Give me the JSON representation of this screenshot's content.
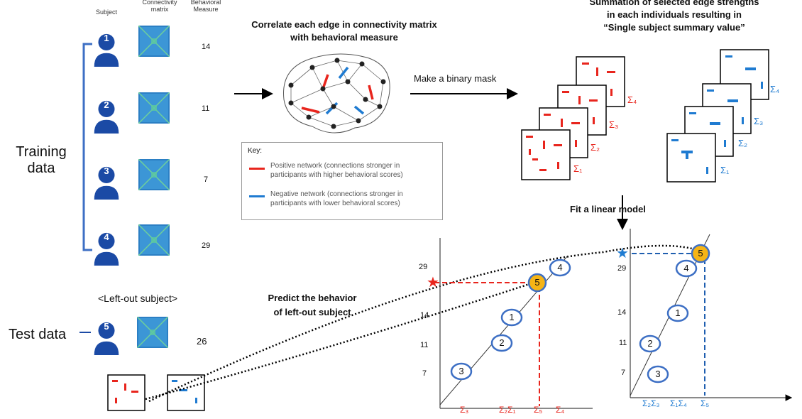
{
  "headers": {
    "subject": "Subject",
    "connectivity": "Connectivity matrix",
    "behavioral": "Behavioral Measure"
  },
  "training_label": "Training data",
  "test_label": "Test data",
  "left_out_label": "<Left-out subject>",
  "subjects": [
    {
      "id": "1",
      "measure": "14"
    },
    {
      "id": "2",
      "measure": "11"
    },
    {
      "id": "3",
      "measure": "7"
    },
    {
      "id": "4",
      "measure": "29"
    }
  ],
  "test_subject": {
    "id": "5",
    "measure": "26"
  },
  "correlate_title": "Correlate each edge in connectivity matrix with behavioral measure",
  "make_mask": "Make a binary mask",
  "summation_title_line1": "Summation of selected edge strengths",
  "summation_title_line2": "in each individuals resulting in",
  "summation_title_line3": "“Single subject summary value”",
  "key": {
    "title": "Key:",
    "positive": "Positive network (connections stronger in participants with higher behavioral scores)",
    "negative": "Negative network (connections stronger in participants with lower behavioral scores)"
  },
  "sigma_labels": [
    "Σ₁",
    "Σ₂",
    "Σ₃",
    "Σ₄"
  ],
  "fit_label": "Fit a linear model",
  "predict_label_line1": "Predict the behavior",
  "predict_label_line2": "of left-out subject",
  "left_plot": {
    "y_ticks": [
      "29",
      "14",
      "11",
      "7"
    ],
    "x_ticks": [
      "Σ₃",
      "Σ₂Σ₁",
      "Σ₅",
      "Σ₄"
    ],
    "points": [
      "1",
      "2",
      "3",
      "4",
      "5"
    ]
  },
  "right_plot": {
    "y_ticks": [
      "29",
      "14",
      "11",
      "7"
    ],
    "x_ticks": [
      "Σ₂Σ₃",
      "Σ₁Σ₄",
      "Σ₅"
    ],
    "points": [
      "1",
      "2",
      "3",
      "4",
      "5"
    ]
  },
  "colors": {
    "red": "#e8251d",
    "blue": "#1f7bd1",
    "navy": "#1b4aa5",
    "gold": "#f5b416"
  }
}
